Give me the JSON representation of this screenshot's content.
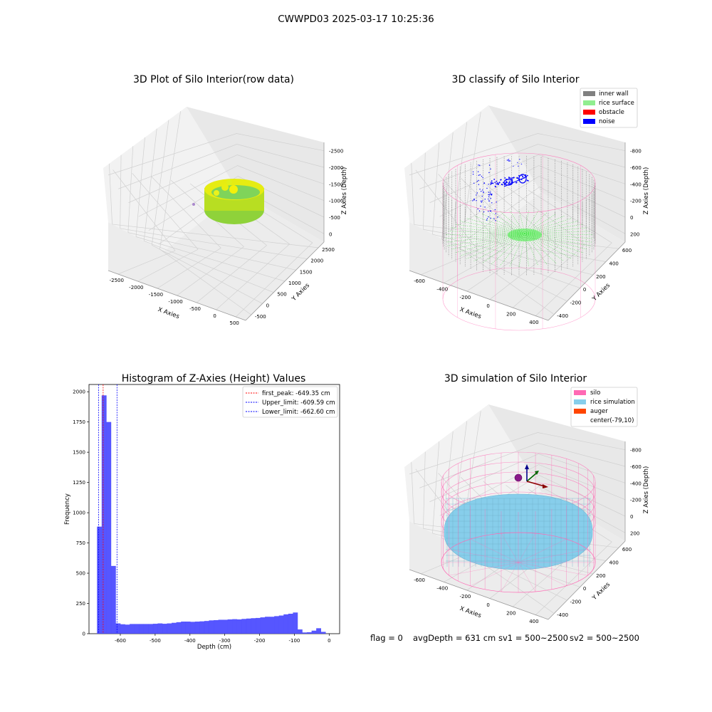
{
  "figure": {
    "suptitle": "CWWPD03 2025-03-17 10:25:36",
    "footer": {
      "flag": "flag = 0",
      "avg_depth": "avgDepth = 631 cm",
      "sv1": "sv1 = 500~2500",
      "sv2": "sv2 = 500~2500"
    }
  },
  "colors": {
    "inner_wall": "#808080",
    "rice_surface": "#90ee90",
    "obstacle": "#ff0000",
    "noise": "#0000ff",
    "silo": "#ff69b4",
    "rice_simulation": "#87ceeb",
    "auger": "#ff4500",
    "hist_bar": "#4d4dff"
  },
  "chart_data": [
    {
      "type": "scatter",
      "panel": "raw",
      "title": "3D Plot of Silo Interior(row data)",
      "xlabel": "X Axies",
      "ylabel": "Y Axies",
      "zlabel": "Z Axies (Depth)",
      "xlim": [
        -2700,
        600
      ],
      "ylim": [
        -600,
        2700
      ],
      "zlim": [
        -2700,
        100
      ],
      "xticks": [
        "-2500",
        "-2000",
        "-1500",
        "-1000",
        "-500",
        "0",
        "500"
      ],
      "yticks": [
        "-500",
        "0",
        "500",
        "1000",
        "1500",
        "2000",
        "2500"
      ],
      "zticks": [
        "0",
        "-500",
        "-1000",
        "-1500",
        "-2000",
        "-2500"
      ]
    },
    {
      "type": "scatter",
      "panel": "classify",
      "title": "3D classify of Silo Interior",
      "xlabel": "X Axies",
      "ylabel": "Y Axies",
      "zlabel": "Z Axies (Depth)",
      "xlim": [
        -700,
        500
      ],
      "ylim": [
        -500,
        600
      ],
      "zlim": [
        -950,
        250
      ],
      "xticks": [
        "-600",
        "-400",
        "-200",
        "0",
        "200",
        "400"
      ],
      "yticks": [
        "-400",
        "-200",
        "0",
        "200",
        "400",
        "600"
      ],
      "zticks": [
        "200",
        "0",
        "-200",
        "-400",
        "-600",
        "-800"
      ],
      "legend": [
        "inner wall",
        "rice surface",
        "obstacle",
        "noise"
      ],
      "legend_position": "top-right"
    },
    {
      "type": "bar",
      "panel": "histogram",
      "title": "Histogram of Z-Axies (Height) Values",
      "xlabel": "Depth (cm)",
      "ylabel": "Frequency",
      "xlim": [
        -690,
        30
      ],
      "ylim": [
        0,
        2060
      ],
      "xticks": [
        "-600",
        "-500",
        "-400",
        "-300",
        "-200",
        "-100",
        "0"
      ],
      "yticks": [
        "0",
        "250",
        "500",
        "750",
        "1000",
        "1250",
        "1500",
        "1750",
        "2000"
      ],
      "bin_start": -667,
      "bin_width": 13.4,
      "values": [
        885,
        1970,
        1750,
        560,
        85,
        78,
        75,
        80,
        80,
        80,
        80,
        80,
        82,
        85,
        82,
        85,
        90,
        95,
        100,
        100,
        98,
        100,
        102,
        105,
        110,
        112,
        115,
        115,
        118,
        120,
        118,
        122,
        125,
        128,
        130,
        135,
        140,
        140,
        145,
        150,
        160,
        165,
        175,
        35,
        10,
        12,
        25,
        45,
        15
      ],
      "vlines": [
        {
          "label": "first_peak: -649.35 cm",
          "x": -649.35,
          "color": "#ff0000"
        },
        {
          "label": "Upper_limit: -609.59 cm",
          "x": -609.59,
          "color": "#0000ff"
        },
        {
          "label": "Lower_limit: -662.60 cm",
          "x": -662.6,
          "color": "#0000ff"
        }
      ],
      "legend_position": "top-right"
    },
    {
      "type": "scatter",
      "panel": "simulation",
      "title": "3D simulation of Silo Interior",
      "xlabel": "X Axies",
      "ylabel": "Y Axies",
      "zlabel": "Z Axies (Depth)",
      "xlim": [
        -700,
        500
      ],
      "ylim": [
        -500,
        600
      ],
      "zlim": [
        -950,
        250
      ],
      "xticks": [
        "-600",
        "-400",
        "-200",
        "0",
        "200",
        "400"
      ],
      "yticks": [
        "-400",
        "-200",
        "0",
        "200",
        "400",
        "600"
      ],
      "zticks": [
        "200",
        "0",
        "-200",
        "-400",
        "-600",
        "-800"
      ],
      "legend": [
        "silo",
        "rice simulation",
        "auger",
        "center(-79,10)"
      ],
      "legend_position": "top-right"
    }
  ]
}
